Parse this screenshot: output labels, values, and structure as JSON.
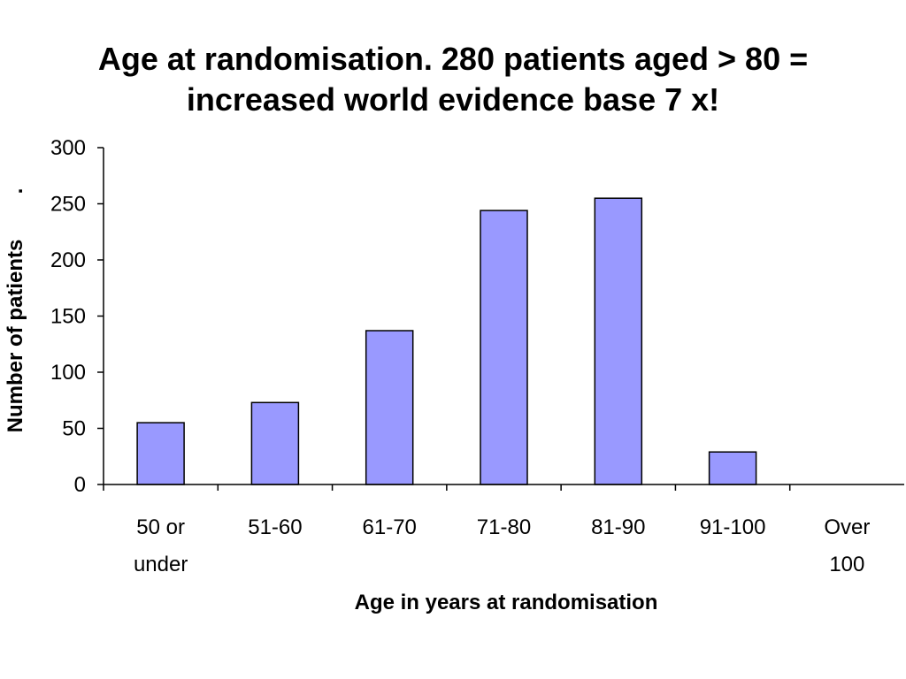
{
  "chart_data": {
    "type": "bar",
    "title_lines": [
      "Age at randomisation. 280 patients aged > 80 =",
      "increased world evidence base 7 x!"
    ],
    "categories": [
      "50 or under",
      "51-60",
      "61-70",
      "71-80",
      "81-90",
      "91-100",
      "Over 100"
    ],
    "category_lines": [
      [
        "50 or",
        "under"
      ],
      [
        "51-60"
      ],
      [
        "61-70"
      ],
      [
        "71-80"
      ],
      [
        "81-90"
      ],
      [
        "91-100"
      ],
      [
        "Over",
        "100"
      ]
    ],
    "values": [
      55,
      73,
      137,
      244,
      255,
      29,
      0
    ],
    "xlabel": "Age in years at randomisation",
    "ylabel": "Number of patients",
    "ylabel_suffix": ".",
    "ylim": [
      0,
      300
    ],
    "yticks": [
      0,
      50,
      100,
      150,
      200,
      250,
      300
    ],
    "bar_color": "#9999ff",
    "bar_edge_color": "#000000",
    "grid": false,
    "legend": "none"
  }
}
